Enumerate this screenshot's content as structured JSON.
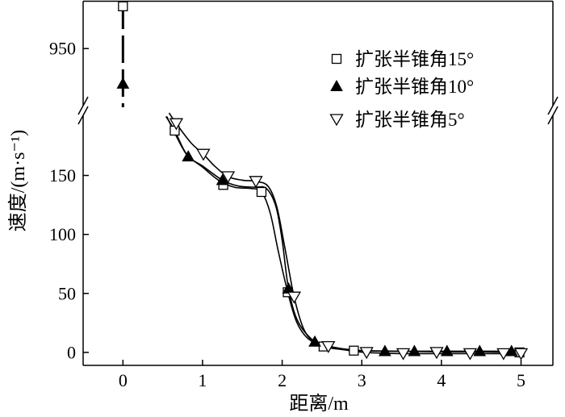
{
  "chart_data": {
    "type": "line",
    "xlabel": "距离/m",
    "ylabel": "速度/(m·s⁻¹)",
    "xlim": [
      -0.5,
      5.4
    ],
    "x_ticks": [
      0,
      1,
      2,
      3,
      4,
      5
    ],
    "y_axis_break": true,
    "ylim_lower": [
      -11,
      203
    ],
    "ylim_upper": [
      900,
      990
    ],
    "y_ticks_lower": [
      0,
      50,
      100,
      150
    ],
    "y_ticks_upper": [
      950
    ],
    "grid": false,
    "legend_position": "top-right",
    "line_color": "#000000",
    "start_segment": {
      "x": [
        0,
        0
      ],
      "y": [
        990,
        900
      ]
    },
    "series": [
      {
        "name": "扩张半锥角15°",
        "marker": "open-square",
        "x": [
          0,
          0.65,
          1.26,
          1.74,
          2.07,
          2.52,
          2.9,
          4.98
        ],
        "y": [
          986,
          188,
          142,
          136,
          51,
          5,
          1.5,
          0
        ],
        "line_x": [
          0.54,
          0.65,
          0.8,
          1.0,
          1.2,
          1.4,
          1.6,
          1.74,
          1.85,
          1.95,
          2.07,
          2.18,
          2.32,
          2.52,
          2.75,
          3.0,
          3.5,
          4.0,
          4.5,
          5.0
        ],
        "line_y": [
          200,
          188,
          168,
          157,
          146,
          140,
          139,
          136,
          118,
          86,
          51,
          26,
          12,
          5,
          2.5,
          1.5,
          1,
          0.5,
          0.5,
          0
        ]
      },
      {
        "name": "扩张半锥角10°",
        "marker": "filled-triangle-up",
        "x": [
          0,
          0.82,
          1.25,
          2.08,
          2.41,
          3.29,
          3.66,
          4.07,
          4.48,
          4.88
        ],
        "y": [
          920,
          166,
          146,
          54,
          9,
          1,
          1,
          1,
          1,
          1
        ],
        "line_x": [
          0.55,
          0.68,
          0.82,
          1.0,
          1.25,
          1.45,
          1.65,
          1.8,
          1.92,
          2.0,
          2.08,
          2.2,
          2.41,
          2.6,
          2.9,
          3.29,
          4.0,
          4.5,
          5.0
        ],
        "line_y": [
          200,
          182,
          166,
          158,
          146,
          141,
          140,
          139,
          124,
          95,
          54,
          26,
          9,
          5,
          2,
          1,
          1,
          1,
          1
        ]
      },
      {
        "name": "扩张半锥角5°",
        "marker": "open-triangle-down",
        "x": [
          0.67,
          1.01,
          1.32,
          1.67,
          2.15,
          2.58,
          3.06,
          3.52,
          3.94,
          4.36,
          4.78,
          5.0
        ],
        "y": [
          194,
          168,
          149,
          145,
          47,
          5,
          0,
          -1,
          0,
          -1,
          -1,
          -1
        ],
        "line_x": [
          0.58,
          0.67,
          0.85,
          1.01,
          1.15,
          1.32,
          1.5,
          1.67,
          1.82,
          1.93,
          2.03,
          2.15,
          2.27,
          2.4,
          2.58,
          2.8,
          3.05,
          3.5,
          4.0,
          4.5,
          5.0
        ],
        "line_y": [
          203,
          194,
          178,
          168,
          158,
          149,
          146,
          145,
          141,
          124,
          90,
          47,
          20,
          9,
          5,
          2,
          0,
          -1,
          -1,
          -1,
          -1
        ]
      }
    ]
  }
}
